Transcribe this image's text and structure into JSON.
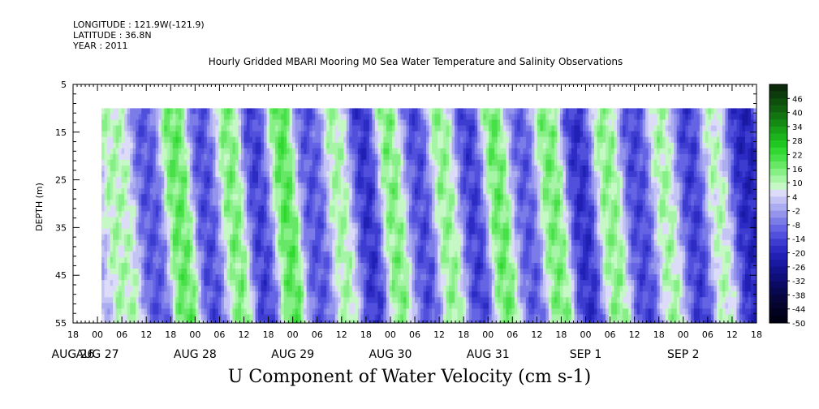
{
  "header": {
    "longitude": "LONGITUDE : 121.9W(-121.9)",
    "latitude": "LATITUDE : 36.8N",
    "year": "YEAR : 2011"
  },
  "chart_data": {
    "type": "heatmap",
    "title": "Hourly Gridded MBARI Mooring M0 Sea Water Temperature and Salinity Observations",
    "xlabel": "U Component of Water Velocity (cm s-1)",
    "ylabel": "DEPTH (m)",
    "ylim": [
      55,
      5
    ],
    "y_ticks": [
      5,
      15,
      25,
      35,
      45,
      55
    ],
    "x_start_hours": -6,
    "x_end_hours": 162,
    "data_start_hours": 1,
    "data_depth_range": [
      10,
      55
    ],
    "hour_tick_labels": [
      "18",
      "00",
      "06",
      "12",
      "18",
      "00",
      "06",
      "12",
      "18",
      "00",
      "06",
      "12",
      "18",
      "00",
      "06",
      "12",
      "18",
      "00",
      "06",
      "12",
      "18",
      "00",
      "06",
      "12",
      "18",
      "00",
      "06",
      "12",
      "18"
    ],
    "date_labels": [
      {
        "text": "AUG 26",
        "hour": -6
      },
      {
        "text": "AUG 27",
        "hour": 0
      },
      {
        "text": "AUG 28",
        "hour": 24
      },
      {
        "text": "AUG 29",
        "hour": 48
      },
      {
        "text": "AUG 30",
        "hour": 72
      },
      {
        "text": "AUG 31",
        "hour": 96
      },
      {
        "text": "SEP  1",
        "hour": 120
      },
      {
        "text": "SEP  2",
        "hour": 144
      }
    ],
    "colorbar": {
      "labels": [
        "46",
        "40",
        "34",
        "28",
        "22",
        "16",
        "10",
        "4",
        "-2",
        "-8",
        "-14",
        "-20",
        "-26",
        "-32",
        "-38",
        "-44",
        "-50"
      ],
      "min": -50,
      "max": 52,
      "step": 3,
      "colors": [
        "#0a2a0a",
        "#0c3c0c",
        "#0e4f0e",
        "#106010",
        "#127512",
        "#148a14",
        "#18a018",
        "#1cb41c",
        "#22c822",
        "#30d830",
        "#48e048",
        "#66e866",
        "#86f086",
        "#a6f4a6",
        "#c6f8c6",
        "#dcdcf8",
        "#c4c4f4",
        "#acacf0",
        "#9494ec",
        "#7c7ce8",
        "#6464e4",
        "#5050dc",
        "#3c3cd0",
        "#2c2cc4",
        "#2020b4",
        "#1818a0",
        "#12128c",
        "#0e0e78",
        "#0a0a64",
        "#080850",
        "#06063c",
        "#04042c",
        "#020220",
        "#000014"
      ]
    },
    "bands": [
      {
        "center": 6,
        "depth": "mid",
        "value": 10
      },
      {
        "center": 13,
        "depth": "all",
        "value": -12
      },
      {
        "center": 20,
        "depth": "all",
        "value": 18
      },
      {
        "center": 27,
        "depth": "all",
        "value": -14
      },
      {
        "center": 33,
        "depth": "all",
        "value": 16
      },
      {
        "center": 40,
        "depth": "all",
        "value": -16
      },
      {
        "center": 46,
        "depth": "all",
        "value": 20
      },
      {
        "center": 53,
        "depth": "all",
        "value": -12
      },
      {
        "center": 60,
        "depth": "all",
        "value": 12
      },
      {
        "center": 66,
        "depth": "all",
        "value": -18
      },
      {
        "center": 73,
        "depth": "all",
        "value": 16
      },
      {
        "center": 79,
        "depth": "all",
        "value": -14
      },
      {
        "center": 86,
        "depth": "all",
        "value": 14
      },
      {
        "center": 92,
        "depth": "all",
        "value": -16
      },
      {
        "center": 99,
        "depth": "all",
        "value": 18
      },
      {
        "center": 105,
        "depth": "all",
        "value": -12
      },
      {
        "center": 112,
        "depth": "all",
        "value": 16
      },
      {
        "center": 119,
        "depth": "all",
        "value": -18
      },
      {
        "center": 126,
        "depth": "all",
        "value": 14
      },
      {
        "center": 133,
        "depth": "all",
        "value": -14
      },
      {
        "center": 140,
        "depth": "all",
        "value": 12
      },
      {
        "center": 146,
        "depth": "all",
        "value": -16
      },
      {
        "center": 153,
        "depth": "all",
        "value": 10
      },
      {
        "center": 159,
        "depth": "all",
        "value": -20
      }
    ]
  }
}
